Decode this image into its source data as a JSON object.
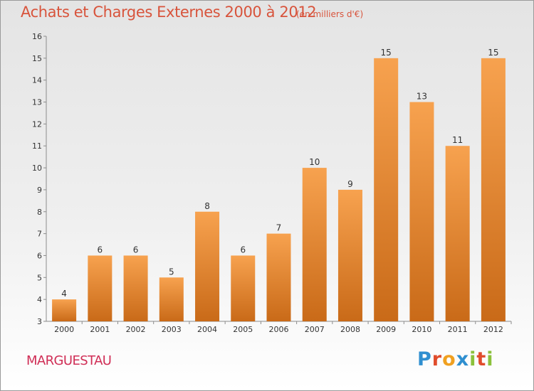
{
  "header": {
    "title": "Achats et Charges Externes 2000 à 2012",
    "subtitle": "(en milliers d'€)"
  },
  "footer": {
    "commune": "MARGUESTAU",
    "logo": "Proxiti"
  },
  "colors": {
    "title": "#d8543c",
    "commune": "#d02e56",
    "bar_top": "#f7a24f",
    "bar_bottom": "#c96a18",
    "logo_letters": [
      "#2f8fd0",
      "#e04c2c",
      "#f0a020",
      "#2f8fd0",
      "#8bc13b",
      "#e04c2c",
      "#8bc13b"
    ]
  },
  "chart_data": {
    "type": "bar",
    "title": "Achats et Charges Externes 2000 à 2012",
    "subtitle": "(en milliers d'€)",
    "categories": [
      "2000",
      "2001",
      "2002",
      "2003",
      "2004",
      "2005",
      "2006",
      "2007",
      "2008",
      "2009",
      "2010",
      "2011",
      "2012"
    ],
    "values": [
      4,
      6,
      6,
      5,
      8,
      6,
      7,
      10,
      9,
      15,
      13,
      11,
      15
    ],
    "ylim": [
      3,
      16
    ],
    "yticks": [
      3,
      4,
      5,
      6,
      7,
      8,
      9,
      10,
      11,
      12,
      13,
      14,
      15,
      16
    ],
    "grid": false,
    "data_labels": true,
    "xlabel": "",
    "ylabel": ""
  }
}
